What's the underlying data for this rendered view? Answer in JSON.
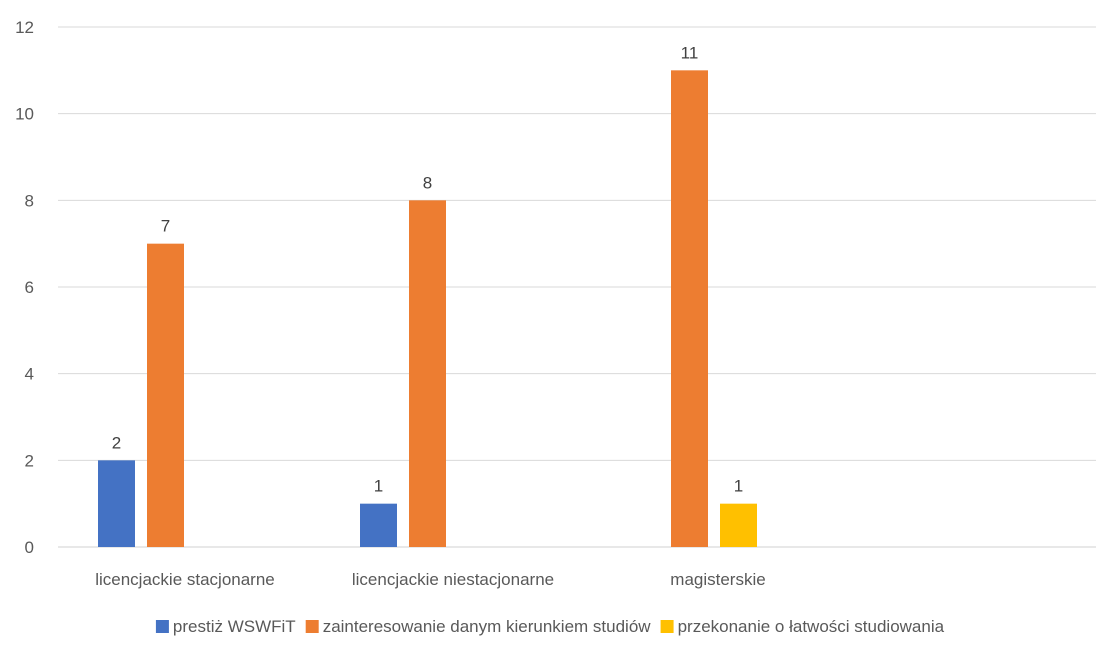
{
  "chart_data": {
    "type": "bar",
    "title": "",
    "xlabel": "",
    "ylabel": "",
    "categories": [
      "licencjackie stacjonarne",
      "licencjackie niestacjonarne",
      "magisterskie"
    ],
    "series": [
      {
        "name": "prestiż WSWFiT",
        "color": "#4472C4",
        "values": [
          2,
          1,
          null
        ]
      },
      {
        "name": "zainteresowanie danym kierunkiem studiów",
        "color": "#ED7D31",
        "values": [
          7,
          8,
          11
        ]
      },
      {
        "name": "przekonanie o łatwości studiowania",
        "color": "#FFC000",
        "values": [
          null,
          null,
          1
        ]
      }
    ],
    "ylim": [
      0,
      12
    ],
    "yticks": [
      0,
      2,
      4,
      6,
      8,
      10,
      12
    ],
    "grid": true,
    "legend_position": "bottom",
    "data_labels": true
  }
}
